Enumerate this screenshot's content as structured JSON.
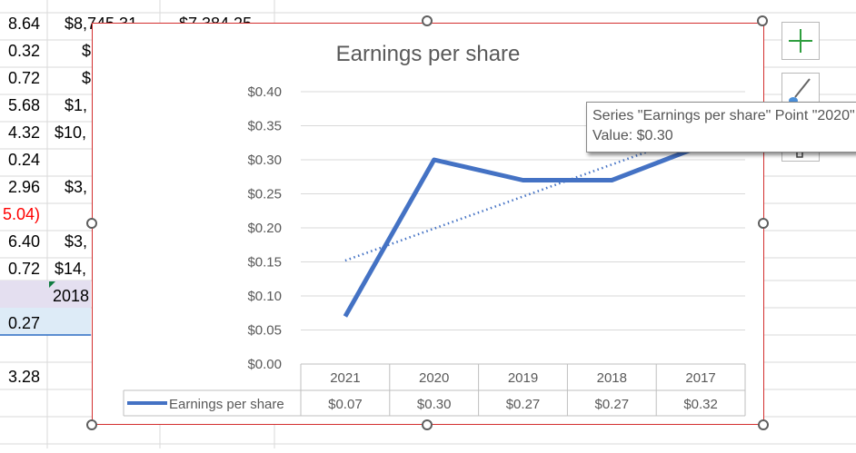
{
  "sheet": {
    "column_a": [
      "8.64",
      "0.32",
      "0.72",
      "5.68",
      "4.32",
      "0.24",
      "2.96",
      "5.04)",
      "6.40",
      "0.72",
      "0.27",
      "3.28"
    ],
    "column_b": [
      "$8,745.31",
      "$",
      "$",
      "$1,",
      "$10,",
      "$3,",
      "$3,",
      "$14,",
      "2018"
    ],
    "column_c": [
      "$7,384.25"
    ]
  },
  "colors": {
    "series_line": "#4472c4",
    "trendline": "#4472c4",
    "selection_border": "#d32f2f",
    "negative_text": "#ff0000",
    "add_element_icon": "#2e9e3e",
    "brush_icon": "#4a90d9"
  },
  "side_buttons": {
    "chart_elements_icon": "plus-icon",
    "chart_styles_icon": "paint-brush-icon",
    "chart_filters_icon": "filter-icon"
  },
  "tooltip": {
    "line1": "Series \"Earnings per share\" Point \"2020\"",
    "line2": "Value: $0.30"
  },
  "chart_data": {
    "type": "line",
    "title": "Earnings per share",
    "categories": [
      "2021",
      "2020",
      "2019",
      "2018",
      "2017"
    ],
    "series": [
      {
        "name": "Earnings per share",
        "values": [
          0.07,
          0.3,
          0.27,
          0.27,
          0.32
        ],
        "value_labels": [
          "$0.07",
          "$0.30",
          "$0.27",
          "$0.27",
          "$0.32"
        ]
      }
    ],
    "trendline": {
      "type": "linear",
      "style": "dotted"
    },
    "y_ticks": [
      "$0.00",
      "$0.05",
      "$0.10",
      "$0.15",
      "$0.20",
      "$0.25",
      "$0.30",
      "$0.35",
      "$0.40"
    ],
    "ylim": [
      0,
      0.4
    ],
    "grid": true,
    "data_table": true,
    "legend": "in data table"
  }
}
